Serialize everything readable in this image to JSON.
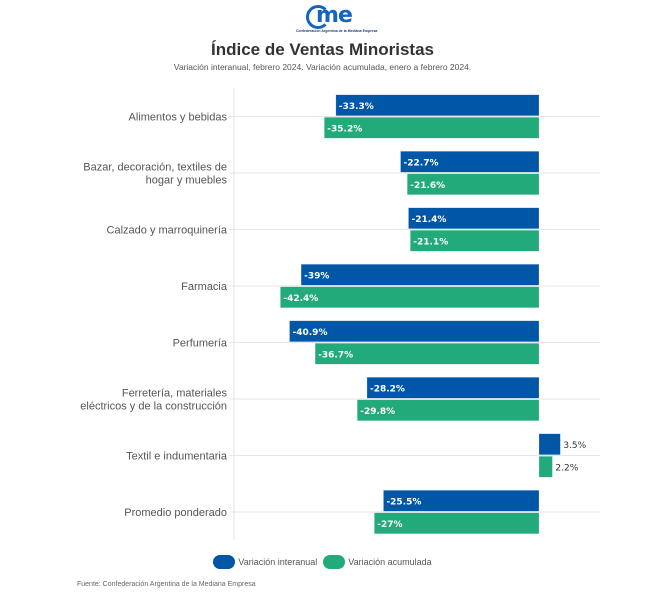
{
  "logo": {
    "name": "came",
    "subtitle": "Confederación Argentina de la Mediana Empresa"
  },
  "colors": {
    "interanual": "#0057A8",
    "acumulada": "#22AA7A",
    "grid": "#e6e6e6"
  },
  "chart_data": {
    "type": "bar",
    "orientation": "horizontal",
    "title": "Índice de Ventas Minoristas",
    "subtitle": "Variación interanual, febrero 2024. Variación acumulada, enero a febrero 2024.",
    "xlabel": "",
    "ylabel": "",
    "xlim": [
      -50,
      10
    ],
    "grid": true,
    "legend_position": "bottom-center",
    "categories": [
      "Alimentos y bebidas",
      "Bazar, decoración, textiles de hogar y muebles",
      "Calzado y marroquinería",
      "Farmacia",
      "Perfumería",
      "Ferretería, materiales eléctricos y de la construcción",
      "Textil e indumentaria",
      "Promedio ponderado"
    ],
    "category_lines": [
      [
        "Alimentos y bebidas"
      ],
      [
        "Bazar, decoración, textiles de",
        "hogar y muebles"
      ],
      [
        "Calzado y marroquinería"
      ],
      [
        "Farmacia"
      ],
      [
        "Perfumería"
      ],
      [
        "Ferretería, materiales",
        "eléctricos y de la construcción"
      ],
      [
        "Textil e indumentaria"
      ],
      [
        "Promedio ponderado"
      ]
    ],
    "series": [
      {
        "name": "Variación interanual",
        "key": "interanual",
        "values": [
          -33.3,
          -22.7,
          -21.4,
          -39,
          -40.9,
          -28.2,
          3.5,
          -25.5
        ],
        "labels": [
          "-33.3%",
          "-22.7%",
          "-21.4%",
          "-39%",
          "-40.9%",
          "-28.2%",
          "3.5%",
          "-25.5%"
        ]
      },
      {
        "name": "Variación acumulada",
        "key": "acumulada",
        "values": [
          -35.2,
          -21.6,
          -21.1,
          -42.4,
          -36.7,
          -29.8,
          2.2,
          -27
        ],
        "labels": [
          "-35.2%",
          "-21.6%",
          "-21.1%",
          "-42.4%",
          "-36.7%",
          "-29.8%",
          "2.2%",
          "-27%"
        ]
      }
    ]
  },
  "legend": {
    "items": [
      "Variación interanual",
      "Variación acumulada"
    ]
  },
  "source": "Fuente: Confederación Argentina de la Mediana Empresa"
}
